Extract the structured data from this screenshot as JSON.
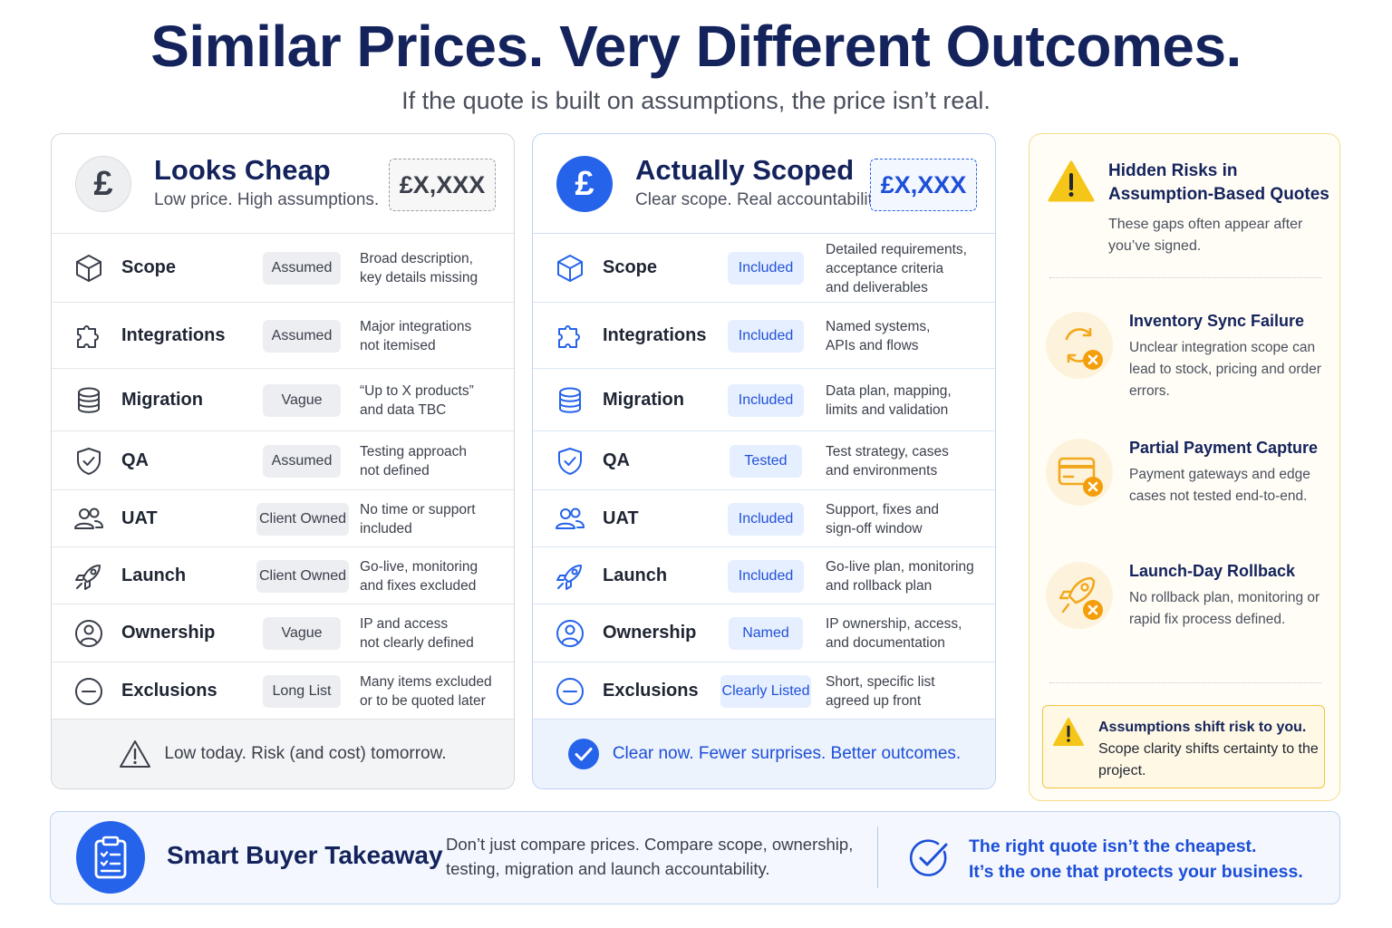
{
  "header": {
    "title": "Similar Prices. Very Different Outcomes.",
    "subtitle": "If the quote is built on assumptions, the price isn’t real."
  },
  "cheap": {
    "symbol": "£",
    "title": "Looks Cheap",
    "subtitle": "Low price. High assumptions.",
    "price": "£X,XXX",
    "footer": "Low today. Risk (and cost) tomorrow.",
    "rows": [
      {
        "label": "Scope",
        "status": "Assumed",
        "desc1": "Broad description,",
        "desc2": "key details missing",
        "desc3": ""
      },
      {
        "label": "Integrations",
        "status": "Assumed",
        "desc1": "Major integrations",
        "desc2": "not itemised",
        "desc3": ""
      },
      {
        "label": "Migration",
        "status": "Vague",
        "desc1": "“Up to X products”",
        "desc2": "and data TBC",
        "desc3": ""
      },
      {
        "label": "QA",
        "status": "Assumed",
        "desc1": "Testing approach",
        "desc2": "not defined",
        "desc3": ""
      },
      {
        "label": "UAT",
        "status": "Client Owned",
        "desc1": "No time or support",
        "desc2": "included",
        "desc3": ""
      },
      {
        "label": "Launch",
        "status": "Client Owned",
        "desc1": "Go-live, monitoring",
        "desc2": "and fixes excluded",
        "desc3": ""
      },
      {
        "label": "Ownership",
        "status": "Vague",
        "desc1": "IP and access",
        "desc2": "not clearly defined",
        "desc3": ""
      },
      {
        "label": "Exclusions",
        "status": "Long List",
        "desc1": "Many items excluded",
        "desc2": "or to be quoted later",
        "desc3": ""
      }
    ]
  },
  "scoped": {
    "symbol": "£",
    "title": "Actually Scoped",
    "subtitle": "Clear scope. Real accountability.",
    "price": "£X,XXX",
    "footer": "Clear now. Fewer surprises. Better outcomes.",
    "rows": [
      {
        "label": "Scope",
        "status": "Included",
        "desc1": "Detailed requirements,",
        "desc2": "acceptance criteria",
        "desc3": "and deliverables"
      },
      {
        "label": "Integrations",
        "status": "Included",
        "desc1": "Named systems,",
        "desc2": "APIs and flows",
        "desc3": ""
      },
      {
        "label": "Migration",
        "status": "Included",
        "desc1": "Data plan, mapping,",
        "desc2": "limits and validation",
        "desc3": ""
      },
      {
        "label": "QA",
        "status": "Tested",
        "desc1": "Test strategy, cases",
        "desc2": "and environments",
        "desc3": ""
      },
      {
        "label": "UAT",
        "status": "Included",
        "desc1": "Support, fixes and",
        "desc2": "sign-off window",
        "desc3": ""
      },
      {
        "label": "Launch",
        "status": "Included",
        "desc1": "Go-live plan, monitoring",
        "desc2": "and rollback plan",
        "desc3": ""
      },
      {
        "label": "Ownership",
        "status": "Named",
        "desc1": "IP ownership, access,",
        "desc2": "and documentation",
        "desc3": ""
      },
      {
        "label": "Exclusions",
        "status": "Clearly Listed",
        "desc1": "Short, specific list",
        "desc2": "agreed up front",
        "desc3": ""
      }
    ]
  },
  "risks": {
    "title": "Hidden Risks in Assumption-Based Quotes",
    "subtitle": "These gaps often appear after you’ve signed.",
    "items": [
      {
        "title": "Inventory Sync Failure",
        "desc": "Unclear integration scope can lead to stock, pricing and order errors.",
        "icon": "sync-error-icon"
      },
      {
        "title": "Partial Payment Capture",
        "desc": "Payment gateways and edge cases not tested end-to-end.",
        "icon": "card-error-icon"
      },
      {
        "title": "Launch-Day Rollback",
        "desc": "No rollback plan, monitoring or rapid fix process defined.",
        "icon": "rocket-error-icon"
      }
    ],
    "note_bold": "Assumptions shift risk to you.",
    "note_rest": "Scope clarity shifts certainty to the project."
  },
  "takeaway": {
    "title": "Smart Buyer Takeaway",
    "desc": "Don’t just compare prices. Compare scope, ownership, testing, migration and launch accountability.",
    "quote1": "The right quote isn’t the cheapest.",
    "quote2": "It’s the one that protects your business."
  },
  "colors": {
    "navy": "#14235c",
    "blue": "#2563eb",
    "amber": "#f2c440",
    "orange": "#f59e0b"
  }
}
